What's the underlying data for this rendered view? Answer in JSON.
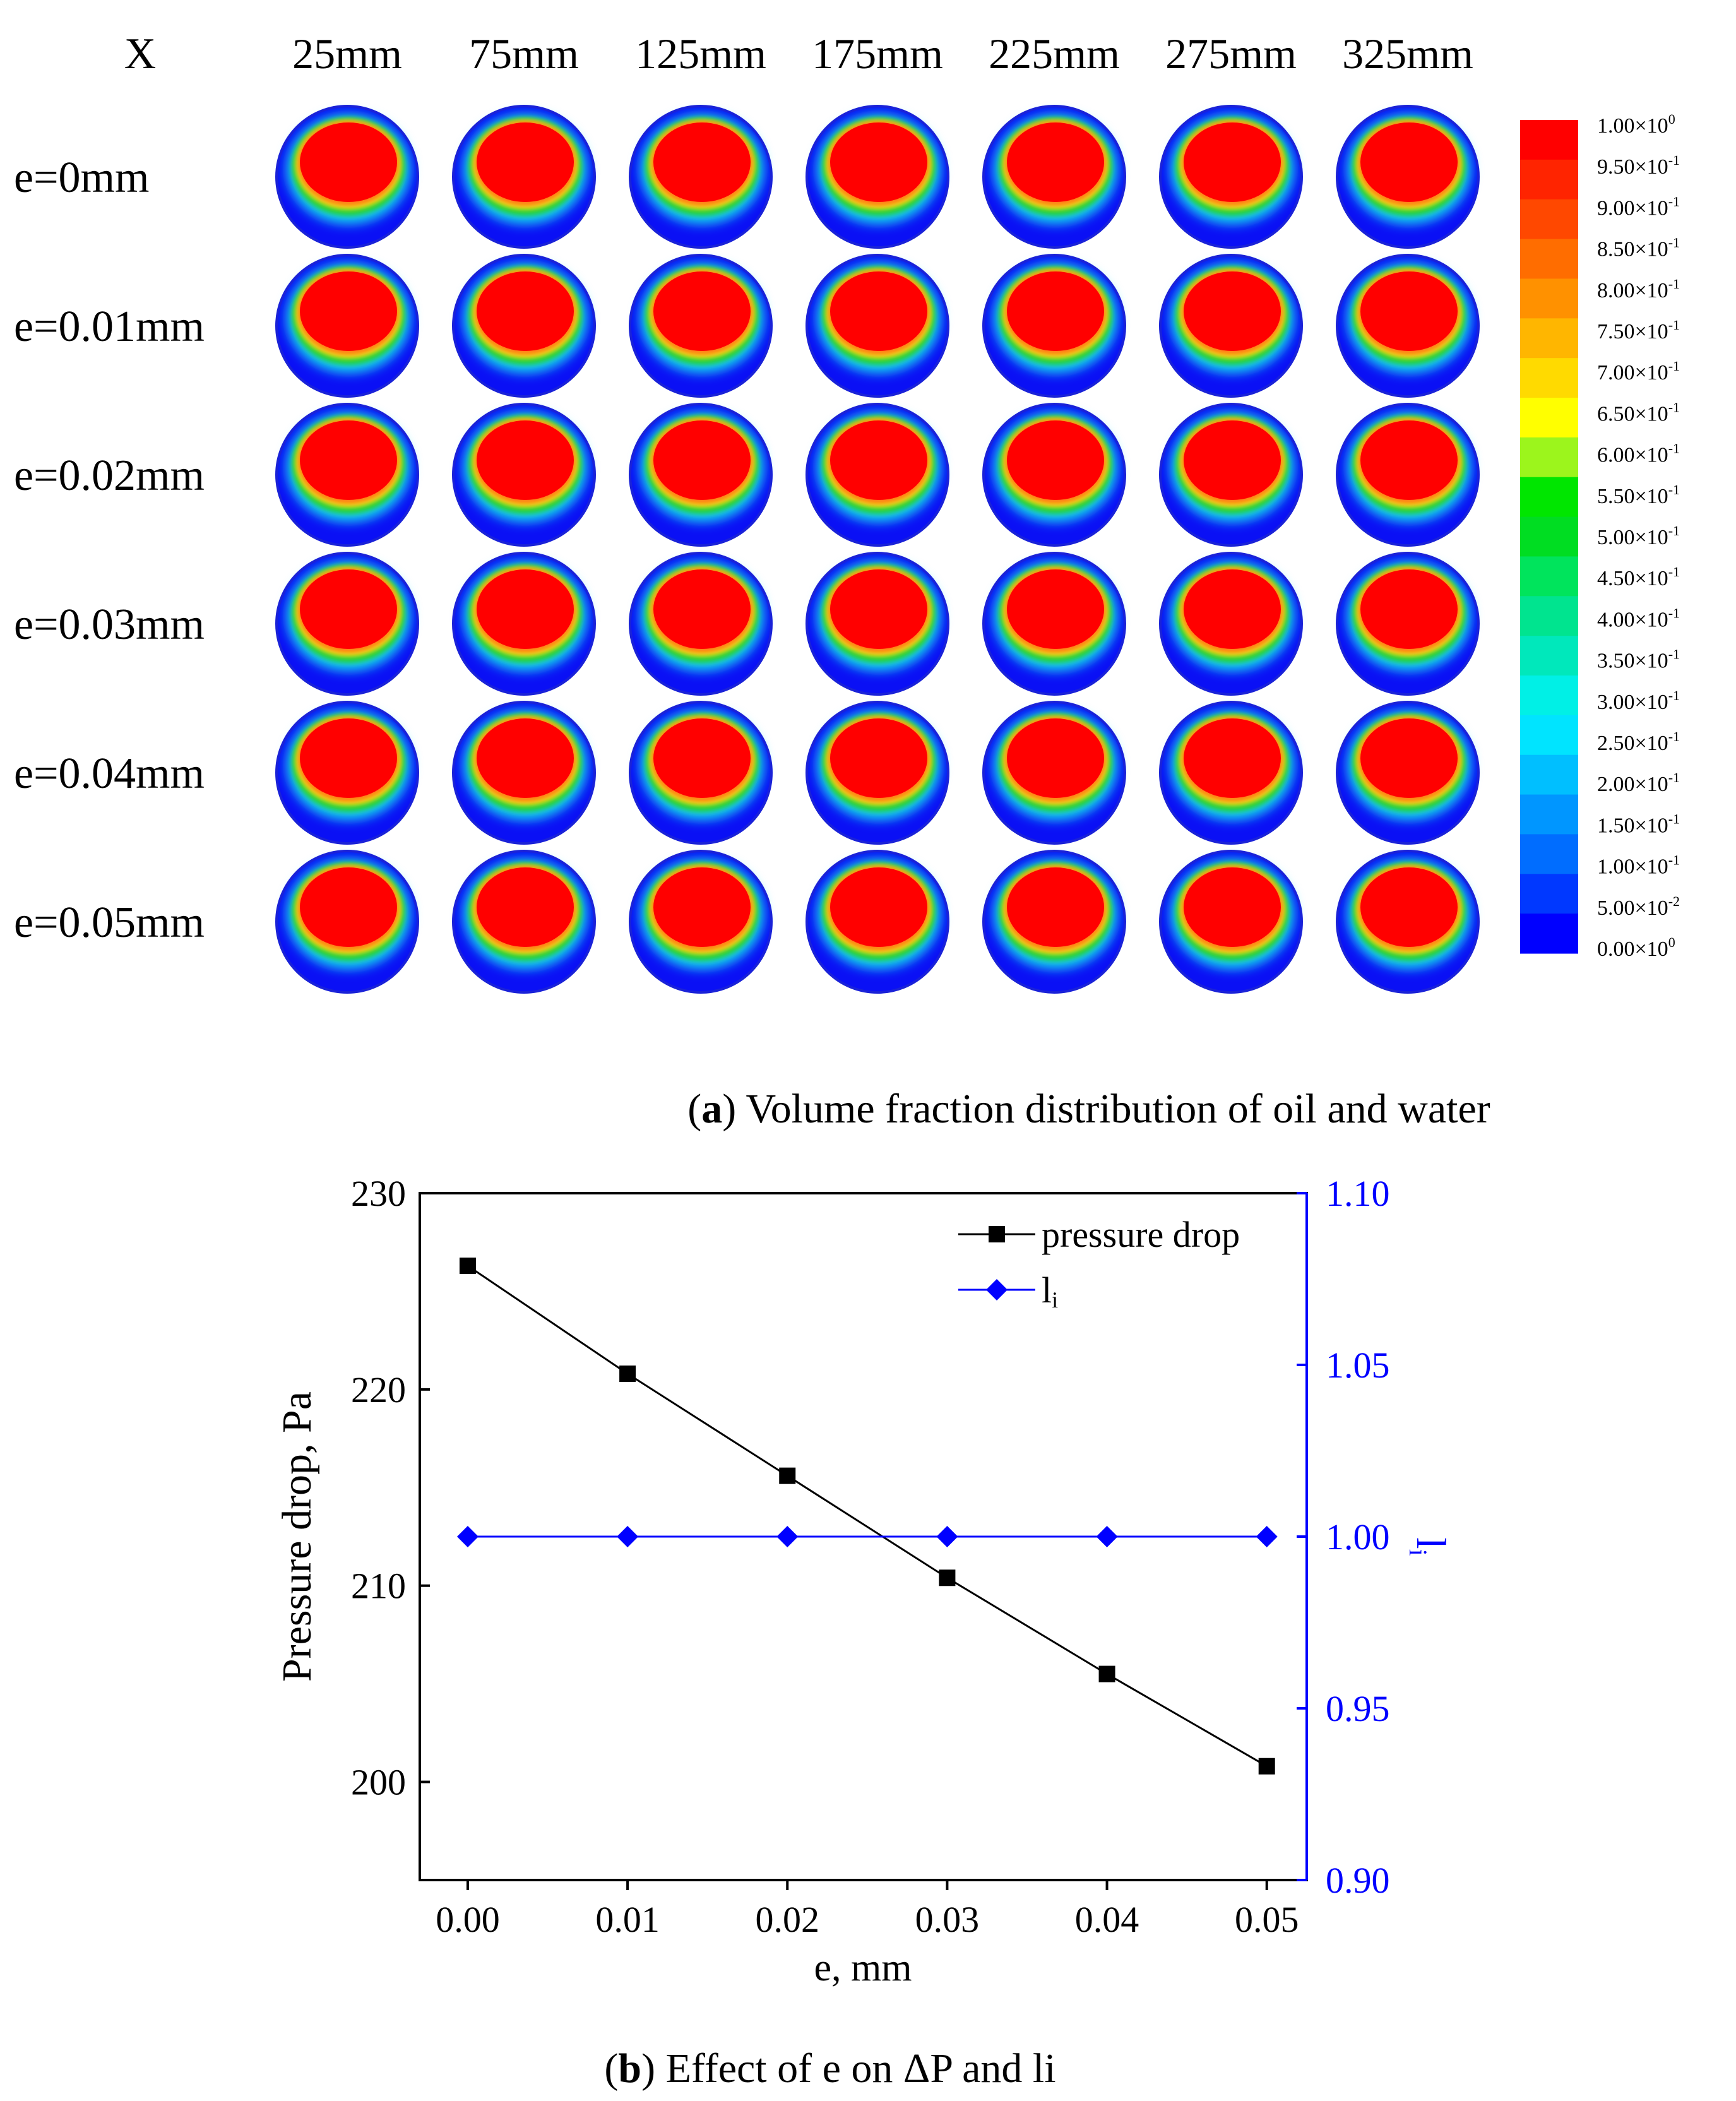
{
  "panel_a": {
    "corner_label": "X",
    "columns": [
      "25mm",
      "75mm",
      "125mm",
      "175mm",
      "225mm",
      "275mm",
      "325mm"
    ],
    "rows": [
      "e=0mm",
      "e=0.01mm",
      "e=0.02mm",
      "e=0.03mm",
      "e=0.04mm",
      "e=0.05mm"
    ],
    "colorbar": {
      "levels": [
        {
          "mant": "1.00",
          "exp": "0",
          "color": "#ff0000"
        },
        {
          "mant": "9.50",
          "exp": "-1",
          "color": "#ff2400"
        },
        {
          "mant": "9.00",
          "exp": "-1",
          "color": "#ff4800"
        },
        {
          "mant": "8.50",
          "exp": "-1",
          "color": "#ff6d00"
        },
        {
          "mant": "8.00",
          "exp": "-1",
          "color": "#ff9100"
        },
        {
          "mant": "7.50",
          "exp": "-1",
          "color": "#ffb600"
        },
        {
          "mant": "7.00",
          "exp": "-1",
          "color": "#ffda00"
        },
        {
          "mant": "6.50",
          "exp": "-1",
          "color": "#ffff00"
        },
        {
          "mant": "6.00",
          "exp": "-1",
          "color": "#9cf51c"
        },
        {
          "mant": "5.50",
          "exp": "-1",
          "color": "#00e600"
        },
        {
          "mant": "5.00",
          "exp": "-1",
          "color": "#00dd22"
        },
        {
          "mant": "4.50",
          "exp": "-1",
          "color": "#00e45c"
        },
        {
          "mant": "4.00",
          "exp": "-1",
          "color": "#00e48f"
        },
        {
          "mant": "3.50",
          "exp": "-1",
          "color": "#00e8bb"
        },
        {
          "mant": "3.00",
          "exp": "-1",
          "color": "#00f0e6"
        },
        {
          "mant": "2.50",
          "exp": "-1",
          "color": "#00e4ff"
        },
        {
          "mant": "2.00",
          "exp": "-1",
          "color": "#00bfff"
        },
        {
          "mant": "1.50",
          "exp": "-1",
          "color": "#0096ff"
        },
        {
          "mant": "1.00",
          "exp": "-1",
          "color": "#006dff"
        },
        {
          "mant": "5.00",
          "exp": "-2",
          "color": "#0038ff"
        },
        {
          "mant": "0.00",
          "exp": "0",
          "color": "#0000ff"
        }
      ]
    },
    "caption": {
      "letter": "a",
      "text": " Volume fraction distribution of oil and water"
    }
  },
  "chart_data": {
    "type": "line",
    "x": [
      0.0,
      0.01,
      0.02,
      0.03,
      0.04,
      0.05
    ],
    "x_ticks": [
      "0.00",
      "0.01",
      "0.02",
      "0.03",
      "0.04",
      "0.05"
    ],
    "xlim": [
      -0.003,
      0.0525
    ],
    "xlabel": "e, mm",
    "y_left": {
      "label": "Pressure drop, Pa",
      "ticks": [
        "200",
        "210",
        "220",
        "230"
      ],
      "lim": [
        195,
        230
      ]
    },
    "y_right": {
      "label": "li",
      "ticks": [
        "0.90",
        "0.95",
        "1.00",
        "1.05",
        "1.10"
      ],
      "lim": [
        0.9,
        1.1
      ],
      "color": "#0000ff"
    },
    "series": [
      {
        "name": "pressure drop",
        "axis": "left",
        "marker": "square",
        "color": "#000000",
        "values": [
          226.3,
          220.8,
          215.6,
          210.4,
          205.5,
          200.8
        ]
      },
      {
        "name": "li",
        "axis": "right",
        "marker": "diamond",
        "color": "#0000ff",
        "values": [
          1.0,
          1.0,
          1.0,
          1.0,
          1.0,
          1.0
        ]
      }
    ],
    "legend_position": "top-right",
    "grid": false
  },
  "panel_b": {
    "caption": {
      "letter": "b",
      "text": " Effect of e on ΔP and li"
    }
  }
}
